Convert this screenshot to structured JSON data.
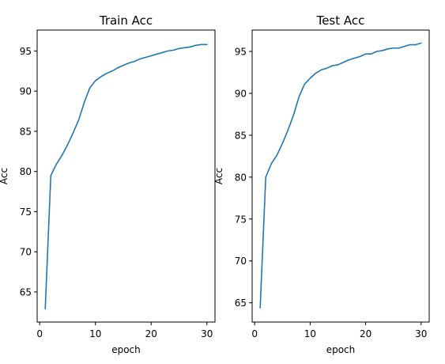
{
  "chart_data": [
    {
      "type": "line",
      "title": "Train Acc",
      "xlabel": "epoch",
      "ylabel": "Acc",
      "xlim": [
        -0.45,
        31.45
      ],
      "ylim": [
        61.25,
        97.6
      ],
      "xticks": [
        0,
        10,
        20,
        30
      ],
      "yticks": [
        65,
        70,
        75,
        80,
        85,
        90,
        95
      ],
      "grid": false,
      "series": [
        {
          "color": "#1f77b4",
          "x": [
            1,
            2,
            3,
            4,
            5,
            6,
            7,
            8,
            9,
            10,
            11,
            12,
            13,
            14,
            15,
            16,
            17,
            18,
            19,
            20,
            21,
            22,
            23,
            24,
            25,
            26,
            27,
            28,
            29,
            30
          ],
          "y": [
            62.9,
            79.5,
            80.9,
            82.0,
            83.3,
            84.8,
            86.4,
            88.6,
            90.4,
            91.3,
            91.8,
            92.2,
            92.5,
            92.9,
            93.2,
            93.5,
            93.7,
            94.0,
            94.2,
            94.4,
            94.6,
            94.8,
            95.0,
            95.1,
            95.3,
            95.4,
            95.5,
            95.7,
            95.8,
            95.8
          ]
        }
      ]
    },
    {
      "type": "line",
      "title": "Test Acc",
      "xlabel": "epoch",
      "ylabel": "Acc",
      "xlim": [
        -0.45,
        31.45
      ],
      "ylim": [
        62.7,
        97.55
      ],
      "xticks": [
        0,
        10,
        20,
        30
      ],
      "yticks": [
        65,
        70,
        75,
        80,
        85,
        90,
        95
      ],
      "grid": false,
      "series": [
        {
          "color": "#1f77b4",
          "x": [
            1,
            2,
            3,
            4,
            5,
            6,
            7,
            8,
            9,
            10,
            11,
            12,
            13,
            14,
            15,
            16,
            17,
            18,
            19,
            20,
            21,
            22,
            23,
            24,
            25,
            26,
            27,
            28,
            29,
            30
          ],
          "y": [
            64.4,
            80.0,
            81.6,
            82.6,
            84.0,
            85.6,
            87.4,
            89.6,
            91.1,
            91.8,
            92.4,
            92.8,
            93.0,
            93.3,
            93.4,
            93.7,
            94.0,
            94.2,
            94.4,
            94.7,
            94.7,
            95.0,
            95.1,
            95.3,
            95.4,
            95.4,
            95.6,
            95.8,
            95.8,
            96.0
          ]
        }
      ]
    }
  ]
}
